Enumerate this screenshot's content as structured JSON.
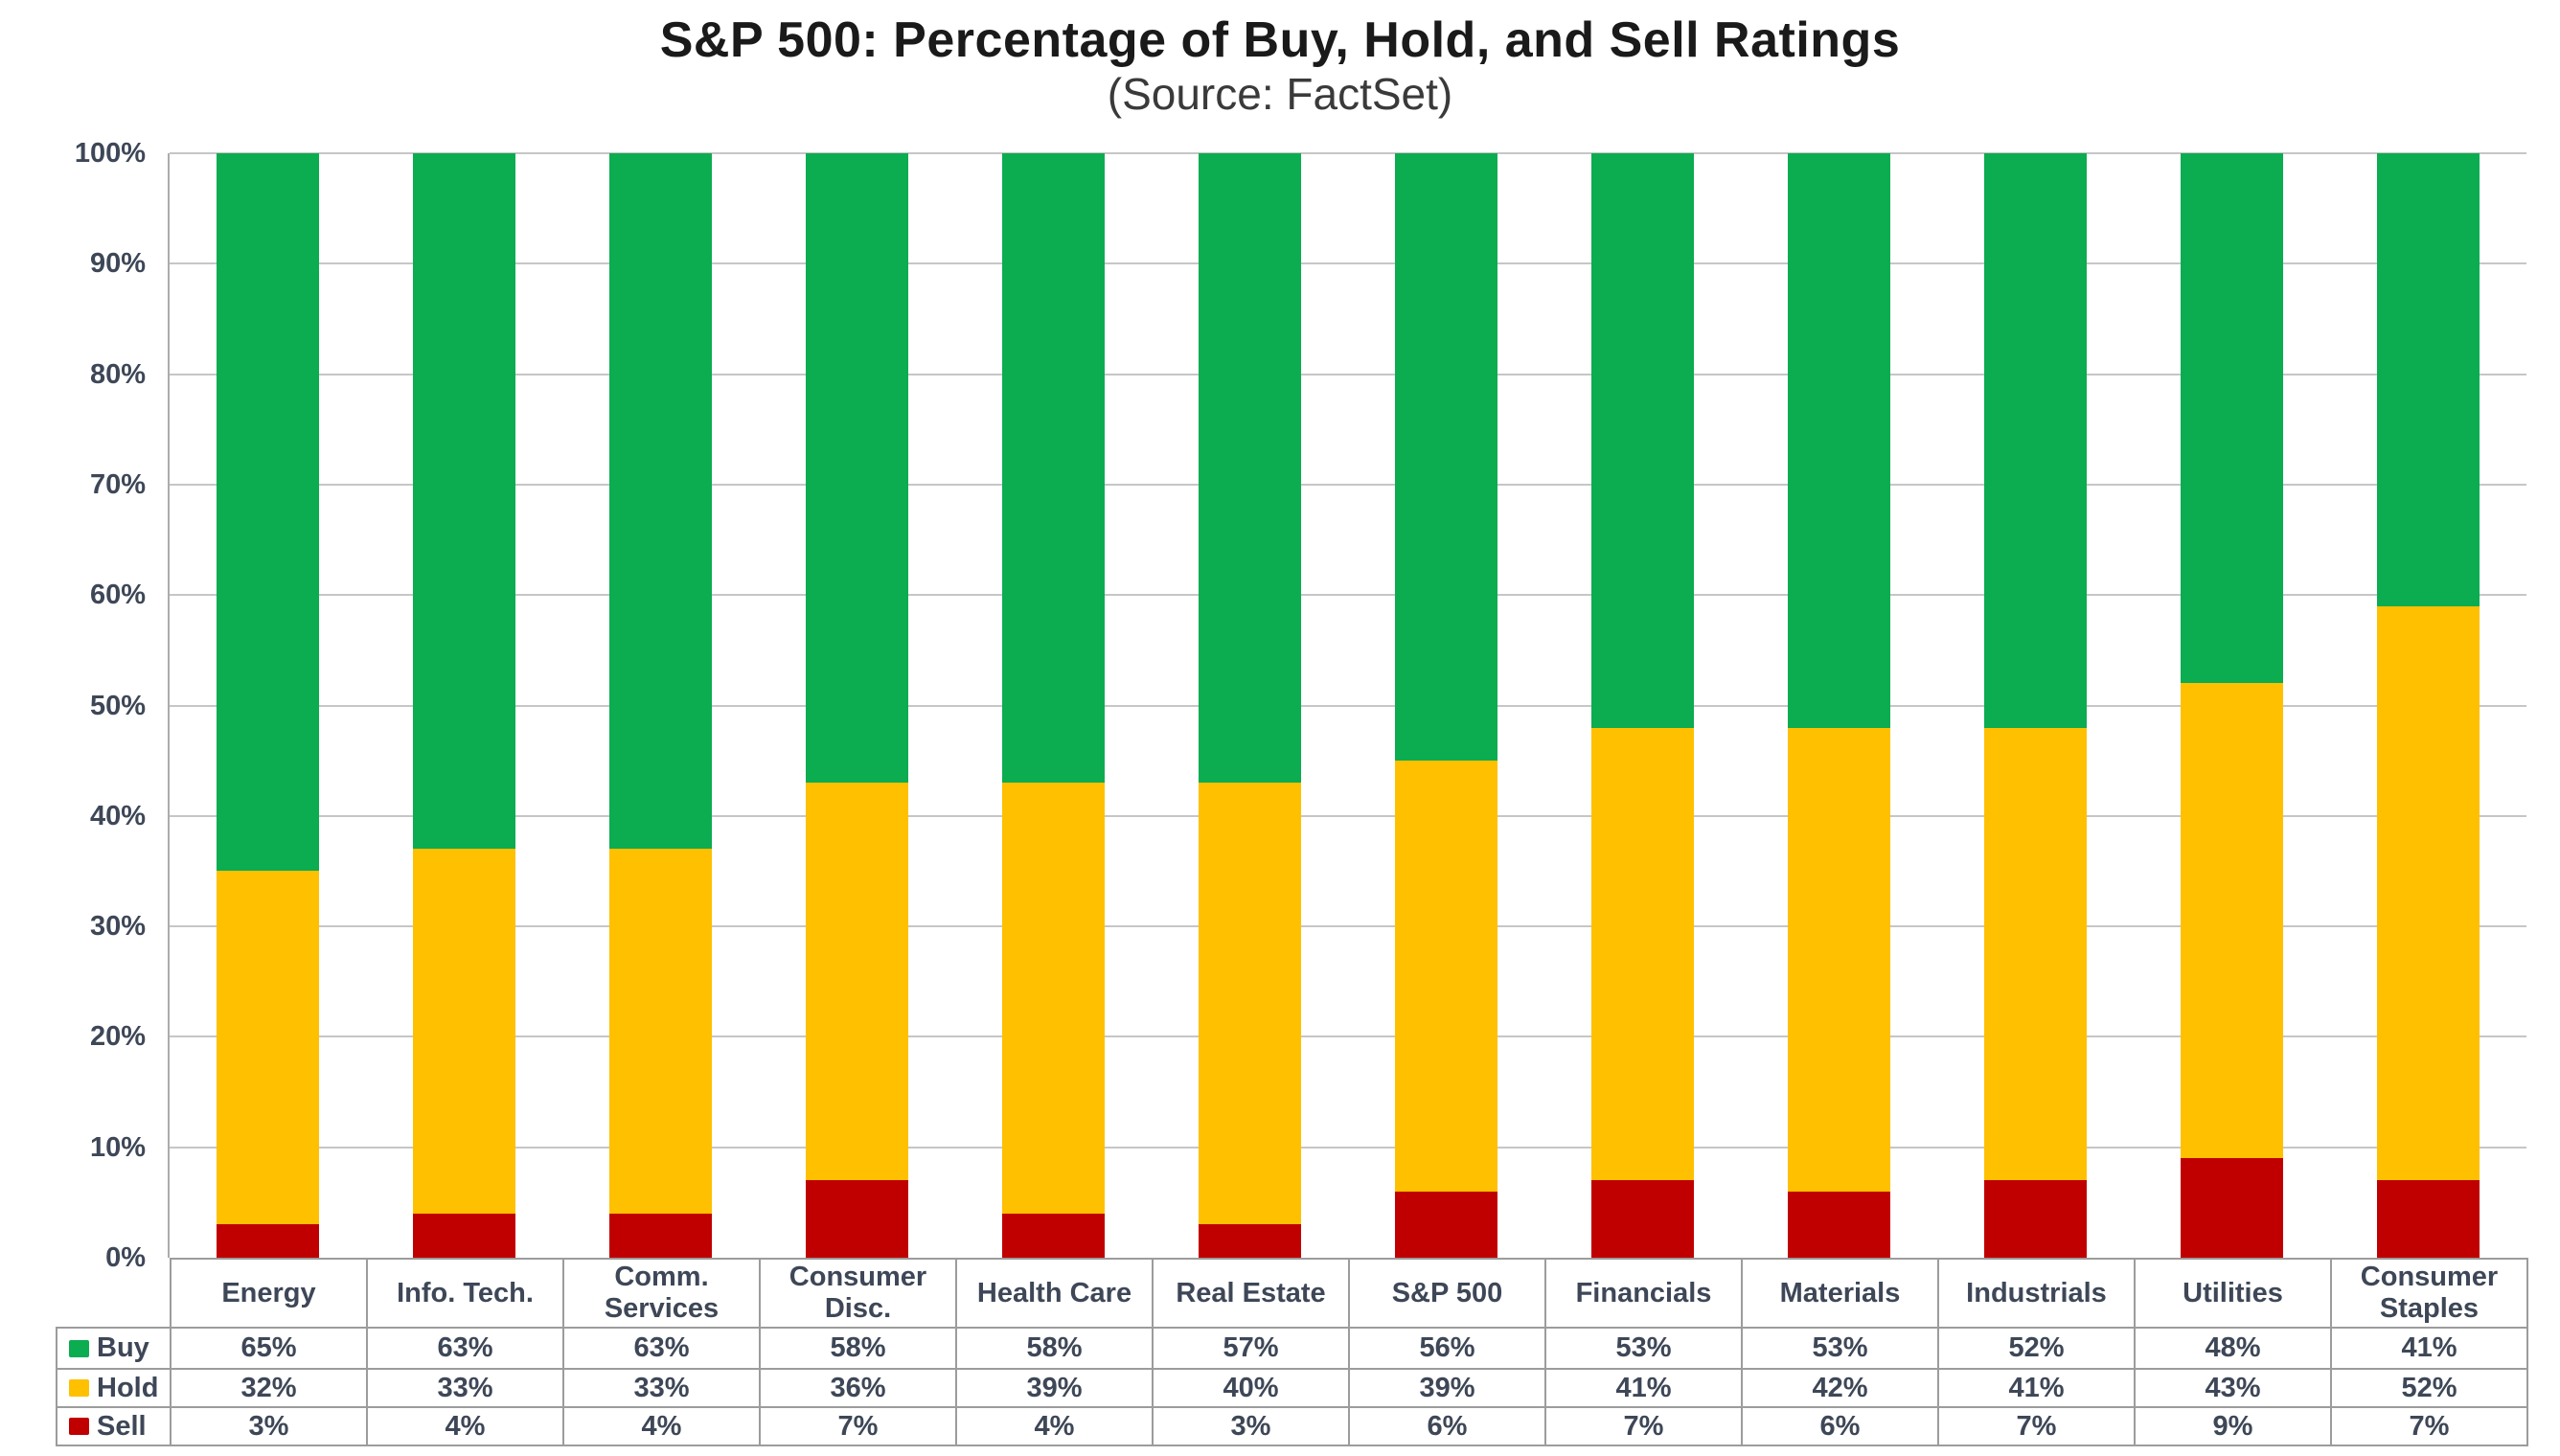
{
  "header": {
    "title": "S&P 500: Percentage of Buy, Hold, and Sell Ratings",
    "subtitle": "(Source: FactSet)"
  },
  "chart_data": {
    "type": "bar",
    "stacked": true,
    "stack_total": 100,
    "title": "S&P 500: Percentage of Buy, Hold, and Sell Ratings",
    "subtitle": "(Source: FactSet)",
    "categories": [
      "Energy",
      "Info. Tech.",
      "Comm.\nServices",
      "Consumer\nDisc.",
      "Health Care",
      "Real Estate",
      "S&P 500",
      "Financials",
      "Materials",
      "Industrials",
      "Utilities",
      "Consumer\nStaples"
    ],
    "series": [
      {
        "name": "Buy",
        "color": "#0cac51",
        "values": [
          65,
          63,
          63,
          58,
          58,
          57,
          56,
          53,
          53,
          52,
          48,
          41
        ]
      },
      {
        "name": "Hold",
        "color": "#ffc000",
        "values": [
          32,
          33,
          33,
          36,
          39,
          40,
          39,
          41,
          42,
          41,
          43,
          52
        ]
      },
      {
        "name": "Sell",
        "color": "#c00000",
        "values": [
          3,
          4,
          4,
          7,
          4,
          3,
          6,
          7,
          6,
          7,
          9,
          7
        ]
      }
    ],
    "value_suffix": "%",
    "y_ticks": [
      "0%",
      "10%",
      "20%",
      "30%",
      "40%",
      "50%",
      "60%",
      "70%",
      "80%",
      "90%",
      "100%"
    ],
    "ylim": [
      0,
      100
    ],
    "grid": true,
    "legend_position": "table-left",
    "colors": {
      "grid": "#c6c6c6",
      "axis_line": "#acacac",
      "table_border": "#9c9c9c",
      "text": "#3e4757"
    }
  }
}
